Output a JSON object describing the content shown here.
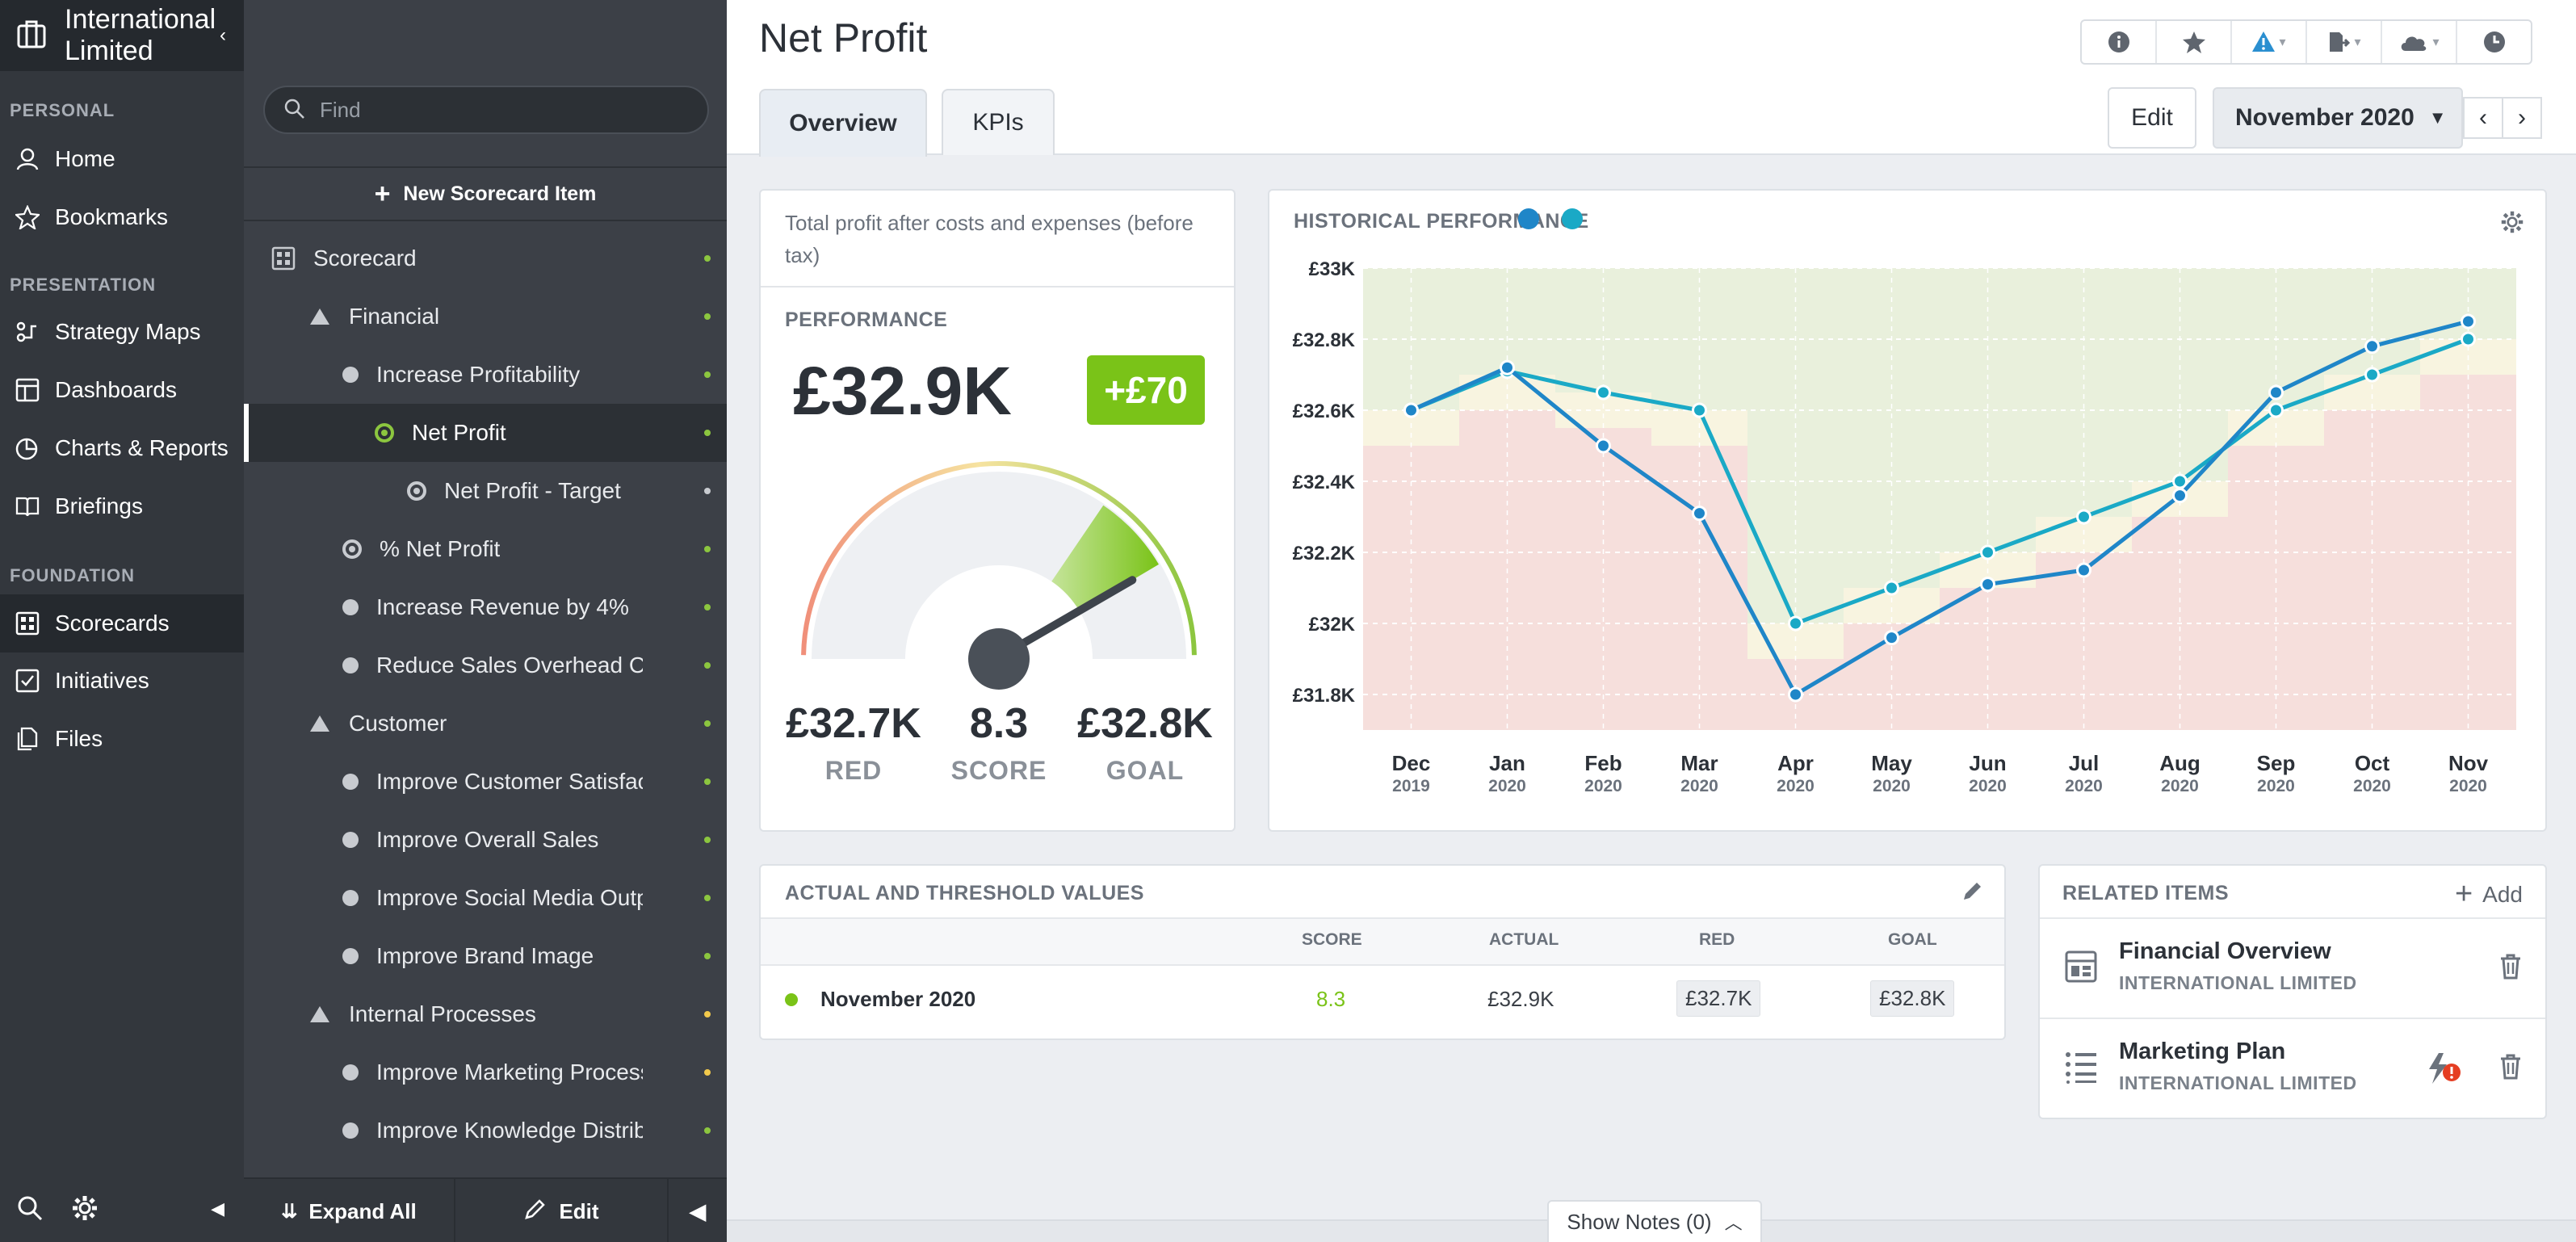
{
  "nav": {
    "org_name": "International Limited",
    "sections": {
      "personal": "PERSONAL",
      "presentation": "PRESENTATION",
      "foundation": "FOUNDATION"
    },
    "items": {
      "home": "Home",
      "bookmarks": "Bookmarks",
      "strategy_maps": "Strategy Maps",
      "dashboards": "Dashboards",
      "charts_reports": "Charts & Reports",
      "briefings": "Briefings",
      "scorecards": "Scorecards",
      "initiatives": "Initiatives",
      "files": "Files"
    }
  },
  "tree": {
    "find_placeholder": "Find",
    "new_item": "New Scorecard Item",
    "rows": [
      {
        "label": "Scorecard",
        "kind": "scorecard",
        "status": "#8cc63f"
      },
      {
        "label": "Financial",
        "kind": "triangle",
        "status": "#8cc63f"
      },
      {
        "label": "Increase Profitability",
        "kind": "bullet",
        "status": "#8cc63f"
      },
      {
        "label": "Net Profit",
        "kind": "ring-green",
        "status": "#8cc63f"
      },
      {
        "label": "Net Profit - Target",
        "kind": "ring",
        "status": "#c8cbd0"
      },
      {
        "label": "% Net Profit",
        "kind": "ring",
        "status": "#8cc63f"
      },
      {
        "label": "Increase Revenue by 4%",
        "kind": "bullet",
        "status": "#8cc63f"
      },
      {
        "label": "Reduce Sales Overhead Cos",
        "kind": "bullet",
        "status": "#8cc63f"
      },
      {
        "label": "Customer",
        "kind": "triangle",
        "status": "#8cc63f"
      },
      {
        "label": "Improve Customer Satisfac",
        "kind": "bullet",
        "status": "#8cc63f"
      },
      {
        "label": "Improve Overall Sales",
        "kind": "bullet",
        "status": "#8cc63f"
      },
      {
        "label": "Improve Social Media Outp",
        "kind": "bullet",
        "status": "#8cc63f"
      },
      {
        "label": "Improve Brand Image",
        "kind": "bullet",
        "status": "#8cc63f"
      },
      {
        "label": "Internal Processes",
        "kind": "triangle",
        "status": "#f2c94c"
      },
      {
        "label": "Improve Marketing Process",
        "kind": "bullet",
        "status": "#f2c94c"
      },
      {
        "label": "Improve Knowledge Distrib",
        "kind": "bullet",
        "status": "#8cc63f"
      }
    ],
    "expand_all": "Expand All",
    "edit": "Edit"
  },
  "header": {
    "title": "Net Profit",
    "tabs": [
      "Overview",
      "KPIs"
    ],
    "edit": "Edit",
    "period": "November 2020"
  },
  "performance": {
    "description": "Total profit after costs and expenses (before tax)",
    "caption": "PERFORMANCE",
    "value": "£32.9K",
    "delta": "+£70",
    "red_value": "£32.7K",
    "red_label": "RED",
    "score_value": "8.3",
    "score_label": "SCORE",
    "goal_value": "£32.8K",
    "goal_label": "GOAL",
    "gauge_score": 8.3
  },
  "history": {
    "caption": "HISTORICAL PERFORMANCE",
    "series_colors": [
      "#1f86c8",
      "#1aa9c6"
    ]
  },
  "chart_data": {
    "type": "line",
    "ylim": [
      31700,
      33000
    ],
    "yticks": [
      "£31.8K",
      "£32K",
      "£32.2K",
      "£32.4K",
      "£32.6K",
      "£32.8K",
      "£33K"
    ],
    "ytick_values": [
      31800,
      32000,
      32200,
      32400,
      32600,
      32800,
      33000
    ],
    "categories": [
      {
        "month": "Dec",
        "year": "2019"
      },
      {
        "month": "Jan",
        "year": "2020"
      },
      {
        "month": "Feb",
        "year": "2020"
      },
      {
        "month": "Mar",
        "year": "2020"
      },
      {
        "month": "Apr",
        "year": "2020"
      },
      {
        "month": "May",
        "year": "2020"
      },
      {
        "month": "Jun",
        "year": "2020"
      },
      {
        "month": "Jul",
        "year": "2020"
      },
      {
        "month": "Aug",
        "year": "2020"
      },
      {
        "month": "Sep",
        "year": "2020"
      },
      {
        "month": "Oct",
        "year": "2020"
      },
      {
        "month": "Nov",
        "year": "2020"
      }
    ],
    "series": [
      {
        "color": "#1f86c8",
        "values": [
          32600,
          32720,
          32500,
          32310,
          31800,
          31960,
          32110,
          32150,
          32360,
          32650,
          32780,
          32850
        ]
      },
      {
        "color": "#1aa9c6",
        "values": [
          32600,
          32710,
          32650,
          32600,
          32000,
          32100,
          32200,
          32300,
          32400,
          32600,
          32700,
          32800
        ]
      }
    ],
    "red_threshold": [
      32500,
      32600,
      32550,
      32500,
      31900,
      32000,
      32100,
      32200,
      32300,
      32500,
      32600,
      32700
    ],
    "goal_threshold": [
      32600,
      32700,
      32650,
      32600,
      32000,
      32100,
      32200,
      32300,
      32400,
      32600,
      32700,
      32800
    ],
    "background_colors": {
      "green": "#e9f0dc",
      "yellow": "#f8f4e0",
      "red": "#f6dfdc"
    }
  },
  "table": {
    "caption": "ACTUAL AND THRESHOLD VALUES",
    "headers": {
      "score": "SCORE",
      "actual": "ACTUAL",
      "red": "RED",
      "goal": "GOAL"
    },
    "row": {
      "period": "November 2020",
      "score": "8.3",
      "actual": "£32.9K",
      "red": "£32.7K",
      "goal": "£32.8K",
      "status_color": "#7ac318"
    }
  },
  "related": {
    "caption": "RELATED ITEMS",
    "add": "Add",
    "items": [
      {
        "title": "Financial Overview",
        "subtitle": "INTERNATIONAL LIMITED",
        "icon": "dashboard-icon"
      },
      {
        "title": "Marketing Plan",
        "subtitle": "INTERNATIONAL LIMITED",
        "icon": "list-icon"
      }
    ]
  },
  "notes": {
    "label": "Show Notes (0)"
  }
}
